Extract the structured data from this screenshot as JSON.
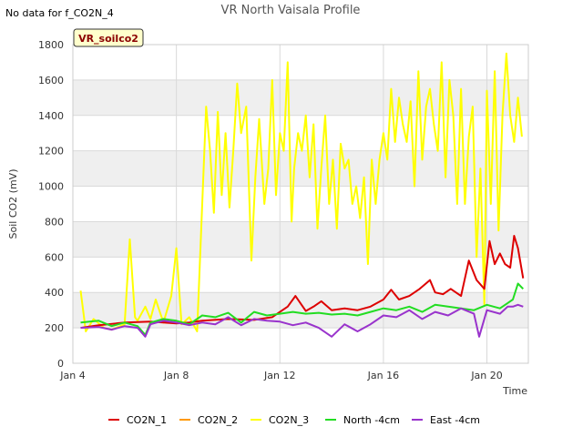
{
  "header": {
    "no_data_note": "No data for f_CO2N_4",
    "badge_label": "VR_soilco2"
  },
  "chart_data": {
    "type": "line",
    "title": "VR North Vaisala Profile",
    "xlabel": "Time",
    "ylabel": "Soil CO2 (mV)",
    "ylim": [
      0,
      1800
    ],
    "xlim_days": [
      4,
      21.6
    ],
    "y_ticks": [
      0,
      200,
      400,
      600,
      800,
      1000,
      1200,
      1400,
      1600,
      1800
    ],
    "x_ticks": [
      {
        "day": 4,
        "label": "Jan 4"
      },
      {
        "day": 8,
        "label": "Jan 8"
      },
      {
        "day": 12,
        "label": "Jan 12"
      },
      {
        "day": 16,
        "label": "Jan 16"
      },
      {
        "day": 20,
        "label": "Jan 20"
      }
    ],
    "grid": true,
    "legend_position": "bottom",
    "colors": {
      "band": "#efefef",
      "grid": "#d9d9d9",
      "badge_bg": "#ffffcc",
      "badge_border": "#333333"
    },
    "series": [
      {
        "name": "CO2N_1",
        "color": "#dd0000",
        "x": [
          4.3,
          5,
          6,
          7,
          8,
          8.5,
          9,
          10,
          11,
          11.7,
          12,
          12.3,
          12.6,
          13,
          13.3,
          13.6,
          14,
          14.5,
          15,
          15.5,
          16,
          16.3,
          16.6,
          17,
          17.4,
          17.8,
          18,
          18.3,
          18.6,
          19,
          19.3,
          19.6,
          19.9,
          20.1,
          20.3,
          20.5,
          20.7,
          20.9,
          21.05,
          21.2,
          21.4
        ],
        "y": [
          200,
          215,
          230,
          235,
          225,
          230,
          240,
          250,
          245,
          260,
          290,
          320,
          380,
          295,
          320,
          350,
          300,
          310,
          300,
          320,
          360,
          415,
          360,
          380,
          420,
          470,
          400,
          390,
          420,
          380,
          580,
          470,
          420,
          690,
          560,
          620,
          560,
          540,
          720,
          650,
          480
        ]
      },
      {
        "name": "CO2N_2",
        "color": "#ff9900",
        "x": [],
        "y": []
      },
      {
        "name": "CO2N_3",
        "color": "#ffff00",
        "x": [
          4.3,
          4.5,
          4.8,
          5.2,
          5.5,
          6,
          6.2,
          6.4,
          6.5,
          6.8,
          7,
          7.2,
          7.5,
          7.8,
          8,
          8.2,
          8.5,
          8.8,
          9,
          9.15,
          9.3,
          9.45,
          9.6,
          9.75,
          9.9,
          10.05,
          10.2,
          10.35,
          10.5,
          10.7,
          10.9,
          11.05,
          11.2,
          11.4,
          11.55,
          11.7,
          11.85,
          12,
          12.15,
          12.3,
          12.45,
          12.55,
          12.7,
          12.85,
          13,
          13.15,
          13.3,
          13.45,
          13.6,
          13.75,
          13.9,
          14.05,
          14.2,
          14.35,
          14.5,
          14.65,
          14.8,
          14.95,
          15.1,
          15.25,
          15.4,
          15.55,
          15.7,
          15.85,
          16,
          16.15,
          16.3,
          16.45,
          16.6,
          16.75,
          16.9,
          17.05,
          17.2,
          17.35,
          17.5,
          17.65,
          17.8,
          17.95,
          18.1,
          18.25,
          18.4,
          18.55,
          18.7,
          18.85,
          19,
          19.15,
          19.3,
          19.45,
          19.6,
          19.75,
          19.9,
          20,
          20.15,
          20.3,
          20.45,
          20.6,
          20.75,
          20.9,
          21.05,
          21.2,
          21.35
        ],
        "y": [
          410,
          180,
          250,
          200,
          190,
          220,
          700,
          260,
          240,
          320,
          250,
          360,
          230,
          380,
          650,
          220,
          260,
          180,
          900,
          1450,
          1200,
          850,
          1420,
          950,
          1300,
          880,
          1200,
          1580,
          1300,
          1450,
          580,
          1050,
          1380,
          900,
          1100,
          1600,
          950,
          1300,
          1200,
          1700,
          800,
          1100,
          1300,
          1200,
          1400,
          1050,
          1350,
          760,
          1100,
          1400,
          900,
          1150,
          760,
          1240,
          1100,
          1150,
          900,
          1000,
          820,
          1050,
          560,
          1150,
          900,
          1150,
          1300,
          1150,
          1550,
          1250,
          1500,
          1350,
          1250,
          1480,
          1000,
          1650,
          1150,
          1450,
          1550,
          1350,
          1200,
          1700,
          1050,
          1600,
          1400,
          900,
          1550,
          900,
          1280,
          1450,
          600,
          1100,
          330,
          1540,
          900,
          1650,
          750,
          1400,
          1750,
          1400,
          1250,
          1500,
          1280
        ]
      },
      {
        "name": "North -4cm",
        "color": "#22dd22",
        "x": [
          4.3,
          5,
          5.5,
          6,
          6.5,
          6.8,
          7,
          7.5,
          8,
          8.5,
          9,
          9.5,
          10,
          10.5,
          11,
          11.5,
          12,
          12.5,
          13,
          13.5,
          14,
          14.5,
          15,
          15.5,
          16,
          16.5,
          17,
          17.5,
          18,
          18.5,
          19,
          19.5,
          20,
          20.5,
          20.8,
          21,
          21.2,
          21.4
        ],
        "y": [
          230,
          240,
          210,
          230,
          210,
          160,
          230,
          250,
          240,
          220,
          270,
          260,
          285,
          230,
          290,
          270,
          280,
          290,
          280,
          285,
          275,
          280,
          270,
          290,
          310,
          300,
          320,
          290,
          330,
          320,
          310,
          300,
          330,
          310,
          340,
          360,
          450,
          420
        ]
      },
      {
        "name": "East -4cm",
        "color": "#9933cc",
        "x": [
          4.3,
          5,
          5.5,
          6,
          6.5,
          6.8,
          7,
          7.5,
          8,
          8.5,
          9,
          9.5,
          10,
          10.5,
          11,
          11.5,
          12,
          12.5,
          13,
          13.5,
          14,
          14.5,
          15,
          15.5,
          16,
          16.5,
          17,
          17.5,
          18,
          18.5,
          19,
          19.5,
          19.7,
          20,
          20.5,
          20.8,
          21,
          21.2,
          21.4
        ],
        "y": [
          200,
          205,
          190,
          210,
          200,
          150,
          220,
          240,
          230,
          215,
          230,
          220,
          260,
          215,
          250,
          240,
          235,
          215,
          230,
          200,
          150,
          220,
          180,
          220,
          270,
          260,
          300,
          250,
          290,
          270,
          310,
          280,
          150,
          300,
          280,
          320,
          320,
          330,
          320
        ]
      }
    ]
  }
}
